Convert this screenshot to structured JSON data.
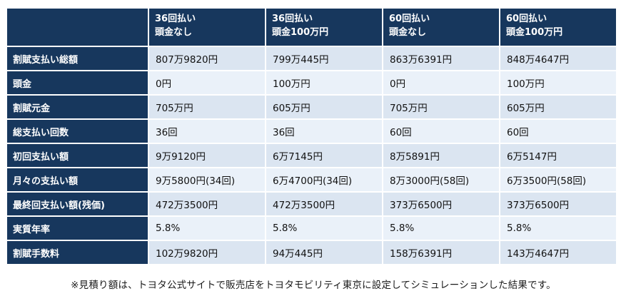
{
  "chart_data": {
    "type": "table",
    "corner_label": "",
    "columns": [
      "36回払い\n頭金なし",
      "36回払い\n頭金100万円",
      "60回払い\n頭金なし",
      "60回払い\n頭金100万円"
    ],
    "rows": [
      {
        "label": "割賦支払い総額",
        "values": [
          "807万9820円",
          "799万445円",
          "863万6391円",
          "848万4647円"
        ]
      },
      {
        "label": "頭金",
        "values": [
          "0円",
          "100万円",
          "0円",
          "100万円"
        ]
      },
      {
        "label": "割賦元金",
        "values": [
          "705万円",
          "605万円",
          "705万円",
          "605万円"
        ]
      },
      {
        "label": "総支払い回数",
        "values": [
          "36回",
          "36回",
          "60回",
          "60回"
        ]
      },
      {
        "label": "初回支払い額",
        "values": [
          "9万9120円",
          "6万7145円",
          "8万5891円",
          "6万5147円"
        ]
      },
      {
        "label": "月々の支払い額",
        "values": [
          "9万5800円(34回)",
          "6万4700円(34回)",
          "8万3000円(58回)",
          "6万3500円(58回)"
        ]
      },
      {
        "label": "最終回支払い額(残価)",
        "values": [
          "472万3500円",
          "472万3500円",
          "373万6500円",
          "373万6500円"
        ]
      },
      {
        "label": "実質年率",
        "values": [
          "5.8%",
          "5.8%",
          "5.8%",
          "5.8%"
        ]
      },
      {
        "label": "割賦手数料",
        "values": [
          "102万9820円",
          "94万445円",
          "158万6391円",
          "143万4647円"
        ]
      }
    ]
  },
  "footnote": "※見積り額は、トヨタ公式サイトで販売店をトヨタモビリティ東京に設定してシミュレーションした結果です。",
  "colors": {
    "header_bg": "#17375D",
    "header_text": "#FFFFFF",
    "row_odd_bg": "#DBE5F1",
    "row_even_bg": "#EAF1F9",
    "grid_line": "#FFFFFF"
  }
}
